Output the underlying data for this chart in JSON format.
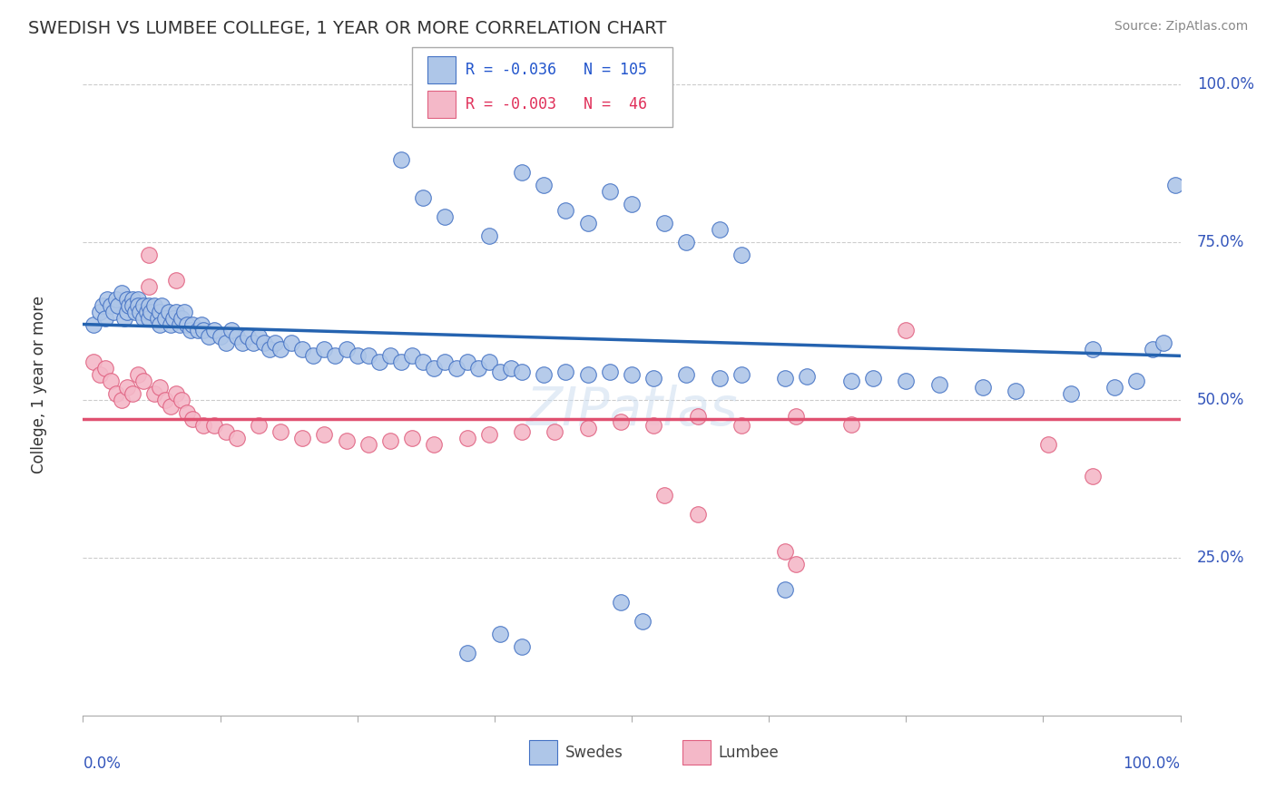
{
  "title": "SWEDISH VS LUMBEE COLLEGE, 1 YEAR OR MORE CORRELATION CHART",
  "source_text": "Source: ZipAtlas.com",
  "ylabel": "College, 1 year or more",
  "xlim": [
    0.0,
    1.0
  ],
  "ylim": [
    0.0,
    1.05
  ],
  "swedes_R": -0.036,
  "swedes_N": 105,
  "lumbee_R": -0.003,
  "lumbee_N": 46,
  "swedes_color": "#aec6e8",
  "swedes_edge_color": "#4472c4",
  "swedes_line_color": "#2563b0",
  "lumbee_color": "#f4b8c8",
  "lumbee_edge_color": "#e06080",
  "lumbee_line_color": "#e05070",
  "background_color": "#ffffff",
  "grid_color": "#cccccc",
  "ytick_vals": [
    0.25,
    0.5,
    0.75,
    1.0
  ],
  "ytick_labels": [
    "25.0%",
    "50.0%",
    "75.0%",
    "100.0%"
  ],
  "watermark": "ZIPatlas",
  "swedes_x": [
    0.01,
    0.015,
    0.018,
    0.02,
    0.022,
    0.025,
    0.028,
    0.03,
    0.032,
    0.035,
    0.038,
    0.04,
    0.04,
    0.042,
    0.045,
    0.045,
    0.048,
    0.05,
    0.05,
    0.052,
    0.055,
    0.055,
    0.058,
    0.06,
    0.06,
    0.062,
    0.065,
    0.068,
    0.07,
    0.07,
    0.072,
    0.075,
    0.078,
    0.08,
    0.082,
    0.085,
    0.088,
    0.09,
    0.092,
    0.095,
    0.098,
    0.1,
    0.105,
    0.108,
    0.11,
    0.115,
    0.12,
    0.125,
    0.13,
    0.135,
    0.14,
    0.145,
    0.15,
    0.155,
    0.16,
    0.165,
    0.17,
    0.175,
    0.18,
    0.19,
    0.2,
    0.21,
    0.22,
    0.23,
    0.24,
    0.25,
    0.26,
    0.27,
    0.28,
    0.29,
    0.3,
    0.31,
    0.32,
    0.33,
    0.34,
    0.35,
    0.36,
    0.37,
    0.38,
    0.39,
    0.4,
    0.42,
    0.44,
    0.46,
    0.48,
    0.5,
    0.52,
    0.55,
    0.58,
    0.6,
    0.64,
    0.66,
    0.7,
    0.72,
    0.75,
    0.78,
    0.82,
    0.85,
    0.9,
    0.92,
    0.94,
    0.96,
    0.975,
    0.985,
    0.995
  ],
  "swedes_y": [
    0.62,
    0.64,
    0.65,
    0.63,
    0.66,
    0.65,
    0.64,
    0.66,
    0.65,
    0.67,
    0.63,
    0.66,
    0.64,
    0.65,
    0.66,
    0.65,
    0.64,
    0.66,
    0.65,
    0.64,
    0.65,
    0.63,
    0.64,
    0.65,
    0.63,
    0.64,
    0.65,
    0.63,
    0.64,
    0.62,
    0.65,
    0.63,
    0.64,
    0.62,
    0.63,
    0.64,
    0.62,
    0.63,
    0.64,
    0.62,
    0.61,
    0.62,
    0.61,
    0.62,
    0.61,
    0.6,
    0.61,
    0.6,
    0.59,
    0.61,
    0.6,
    0.59,
    0.6,
    0.59,
    0.6,
    0.59,
    0.58,
    0.59,
    0.58,
    0.59,
    0.58,
    0.57,
    0.58,
    0.57,
    0.58,
    0.57,
    0.57,
    0.56,
    0.57,
    0.56,
    0.57,
    0.56,
    0.55,
    0.56,
    0.55,
    0.56,
    0.55,
    0.56,
    0.545,
    0.55,
    0.545,
    0.54,
    0.545,
    0.54,
    0.545,
    0.54,
    0.535,
    0.54,
    0.535,
    0.54,
    0.535,
    0.538,
    0.53,
    0.535,
    0.53,
    0.525,
    0.52,
    0.515,
    0.51,
    0.58,
    0.52,
    0.53,
    0.58,
    0.59,
    0.84
  ],
  "swedes_y_extra": [
    0.88,
    0.82,
    0.79,
    0.76,
    0.86,
    0.84,
    0.8,
    0.78,
    0.83,
    0.81,
    0.78,
    0.75,
    0.77,
    0.73,
    0.1,
    0.13,
    0.11,
    0.18,
    0.15,
    0.2
  ],
  "swedes_x_extra": [
    0.29,
    0.31,
    0.33,
    0.37,
    0.4,
    0.42,
    0.44,
    0.46,
    0.48,
    0.5,
    0.53,
    0.55,
    0.58,
    0.6,
    0.35,
    0.38,
    0.4,
    0.49,
    0.51,
    0.64
  ],
  "lumbee_x": [
    0.01,
    0.015,
    0.02,
    0.025,
    0.03,
    0.035,
    0.04,
    0.045,
    0.05,
    0.055,
    0.06,
    0.065,
    0.07,
    0.075,
    0.08,
    0.085,
    0.09,
    0.095,
    0.1,
    0.11,
    0.12,
    0.13,
    0.14,
    0.16,
    0.18,
    0.2,
    0.22,
    0.24,
    0.26,
    0.28,
    0.3,
    0.32,
    0.35,
    0.37,
    0.4,
    0.43,
    0.46,
    0.49,
    0.52,
    0.56,
    0.6,
    0.65,
    0.7,
    0.75,
    0.88,
    0.92
  ],
  "lumbee_y": [
    0.56,
    0.54,
    0.55,
    0.53,
    0.51,
    0.5,
    0.52,
    0.51,
    0.54,
    0.53,
    0.68,
    0.51,
    0.52,
    0.5,
    0.49,
    0.51,
    0.5,
    0.48,
    0.47,
    0.46,
    0.46,
    0.45,
    0.44,
    0.46,
    0.45,
    0.44,
    0.445,
    0.435,
    0.43,
    0.435,
    0.44,
    0.43,
    0.44,
    0.445,
    0.45,
    0.45,
    0.455,
    0.465,
    0.46,
    0.475,
    0.46,
    0.475,
    0.462,
    0.61,
    0.43,
    0.38
  ],
  "lumbee_y_extra": [
    0.73,
    0.69,
    0.35,
    0.32,
    0.26,
    0.24
  ],
  "lumbee_x_extra": [
    0.06,
    0.085,
    0.53,
    0.56,
    0.64,
    0.65
  ],
  "blue_line_y0": 0.62,
  "blue_line_y1": 0.57,
  "pink_line_y": 0.47
}
